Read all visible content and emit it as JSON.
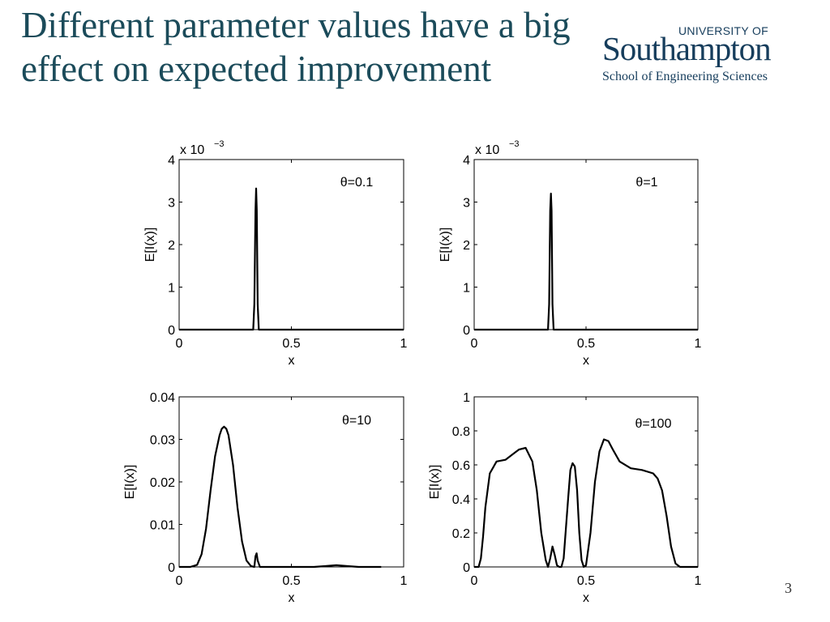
{
  "slide": {
    "title": "Different parameter values have a big effect on expected improvement",
    "page_number": "3"
  },
  "logo": {
    "top_text": "UNIVERSITY OF",
    "main_text": "Southampton",
    "sub_text": "School of Engineering Sciences"
  },
  "chart_data": [
    {
      "type": "line",
      "annotation": "θ=0.1",
      "xlabel": "x",
      "ylabel": "E[I(x)]",
      "exponent_label": "x 10",
      "exponent_power": "−3",
      "xlim": [
        0,
        1
      ],
      "ylim": [
        0,
        4
      ],
      "xticks": [
        0,
        0.5,
        1
      ],
      "xtick_labels": [
        "0",
        "0.5",
        "1"
      ],
      "yticks": [
        0,
        1,
        2,
        3,
        4
      ],
      "ytick_labels": [
        "0",
        "1",
        "2",
        "3",
        "4"
      ],
      "x": [
        0,
        0.33,
        0.335,
        0.34,
        0.343,
        0.346,
        0.35,
        0.355,
        1
      ],
      "y": [
        0,
        0,
        0.6,
        2.8,
        3.32,
        2.8,
        0.6,
        0,
        0
      ]
    },
    {
      "type": "line",
      "annotation": "θ=1",
      "xlabel": "x",
      "ylabel": "E[I(x)]",
      "exponent_label": "x 10",
      "exponent_power": "−3",
      "xlim": [
        0,
        1
      ],
      "ylim": [
        0,
        4
      ],
      "xticks": [
        0,
        0.5,
        1
      ],
      "xtick_labels": [
        "0",
        "0.5",
        "1"
      ],
      "yticks": [
        0,
        1,
        2,
        3,
        4
      ],
      "ytick_labels": [
        "0",
        "1",
        "2",
        "3",
        "4"
      ],
      "x": [
        0,
        0.33,
        0.335,
        0.34,
        0.343,
        0.346,
        0.35,
        0.355,
        1
      ],
      "y": [
        0,
        0,
        0.6,
        2.8,
        3.2,
        2.8,
        0.6,
        0,
        0
      ]
    },
    {
      "type": "line",
      "annotation": "θ=10",
      "xlabel": "x",
      "ylabel": "E[I(x)]",
      "xlim": [
        0,
        1
      ],
      "ylim": [
        0,
        0.04
      ],
      "xticks": [
        0,
        0.5,
        1
      ],
      "xtick_labels": [
        "0",
        "0.5",
        "1"
      ],
      "yticks": [
        0,
        0.01,
        0.02,
        0.03,
        0.04
      ],
      "ytick_labels": [
        "0",
        "0.01",
        "0.02",
        "0.03",
        "0.04"
      ],
      "x": [
        0,
        0.05,
        0.08,
        0.1,
        0.12,
        0.14,
        0.16,
        0.18,
        0.19,
        0.2,
        0.21,
        0.22,
        0.24,
        0.26,
        0.28,
        0.3,
        0.32,
        0.335,
        0.34,
        0.345,
        0.35,
        0.36,
        0.4,
        0.6,
        0.65,
        0.7,
        0.75,
        0.8,
        0.9
      ],
      "y": [
        0,
        0,
        0.0005,
        0.003,
        0.009,
        0.018,
        0.026,
        0.031,
        0.0325,
        0.033,
        0.0325,
        0.031,
        0.024,
        0.014,
        0.006,
        0.0015,
        0.0002,
        0,
        0.0025,
        0.0032,
        0.0015,
        0,
        0,
        0,
        0.0002,
        0.0004,
        0.0002,
        0,
        0
      ]
    },
    {
      "type": "line",
      "annotation": "θ=100",
      "xlabel": "x",
      "ylabel": "E[I(x)]",
      "xlim": [
        0,
        1
      ],
      "ylim": [
        0,
        1
      ],
      "xticks": [
        0,
        0.5,
        1
      ],
      "xtick_labels": [
        "0",
        "0.5",
        "1"
      ],
      "yticks": [
        0,
        0.2,
        0.4,
        0.6,
        0.8,
        1
      ],
      "ytick_labels": [
        "0",
        "0.2",
        "0.4",
        "0.6",
        "0.8",
        "1"
      ],
      "x": [
        0,
        0.02,
        0.03,
        0.04,
        0.05,
        0.07,
        0.1,
        0.14,
        0.17,
        0.2,
        0.23,
        0.26,
        0.28,
        0.3,
        0.32,
        0.33,
        0.34,
        0.35,
        0.36,
        0.37,
        0.38,
        0.39,
        0.4,
        0.42,
        0.43,
        0.44,
        0.45,
        0.46,
        0.47,
        0.48,
        0.49,
        0.5,
        0.52,
        0.54,
        0.56,
        0.58,
        0.6,
        0.62,
        0.65,
        0.7,
        0.75,
        0.8,
        0.82,
        0.84,
        0.86,
        0.88,
        0.9,
        0.92,
        0.95,
        1
      ],
      "y": [
        0,
        0,
        0.05,
        0.18,
        0.35,
        0.55,
        0.62,
        0.63,
        0.66,
        0.69,
        0.7,
        0.62,
        0.45,
        0.2,
        0.04,
        0,
        0.05,
        0.12,
        0.07,
        0.01,
        0,
        0,
        0.05,
        0.4,
        0.57,
        0.61,
        0.59,
        0.45,
        0.2,
        0.04,
        0,
        0.01,
        0.2,
        0.5,
        0.68,
        0.75,
        0.74,
        0.69,
        0.62,
        0.58,
        0.57,
        0.55,
        0.52,
        0.45,
        0.3,
        0.12,
        0.02,
        0,
        0,
        0
      ]
    }
  ]
}
